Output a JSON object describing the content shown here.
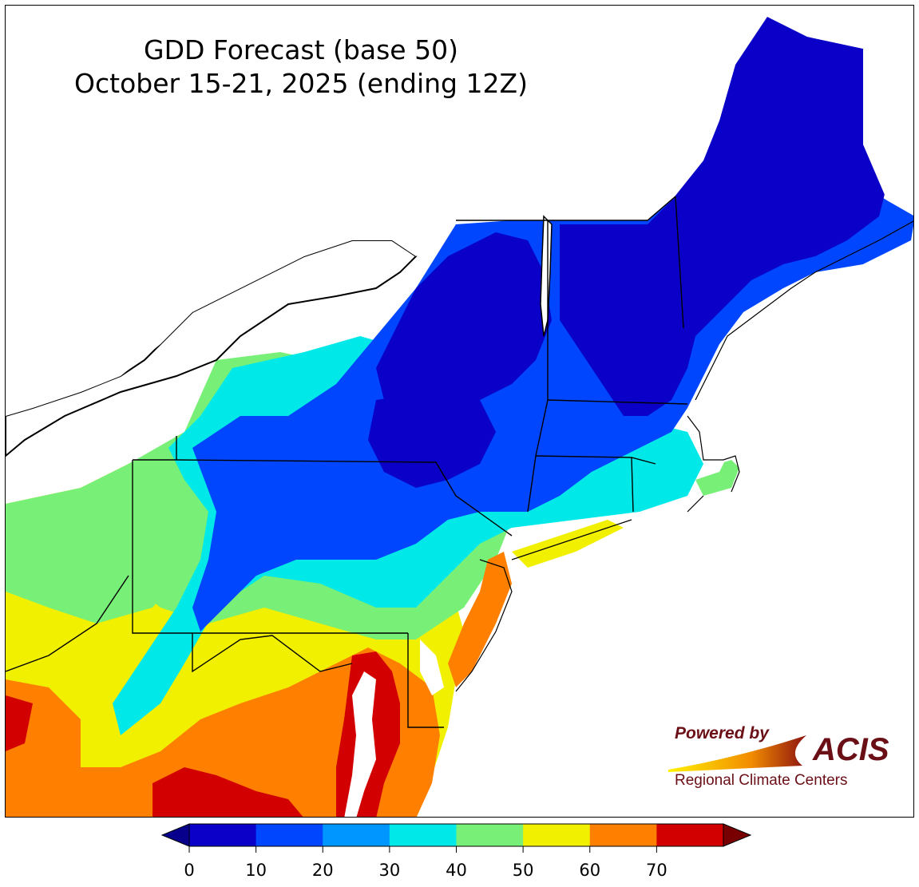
{
  "title": {
    "line1": "GDD Forecast (base 50)",
    "line2": "October 15-21, 2025 (ending 12Z)"
  },
  "logo": {
    "powered_by": "Powered by",
    "acis": "ACIS",
    "subtitle": "Regional Climate Centers"
  },
  "legend": {
    "ticks": [
      "0",
      "10",
      "20",
      "30",
      "40",
      "50",
      "60",
      "70"
    ],
    "colors": [
      "#0a00c8",
      "#0046ff",
      "#0096ff",
      "#00e8e8",
      "#78f078",
      "#f0f000",
      "#ff8000",
      "#d20000"
    ],
    "under_color": "#06008c",
    "over_color": "#780000"
  }
}
